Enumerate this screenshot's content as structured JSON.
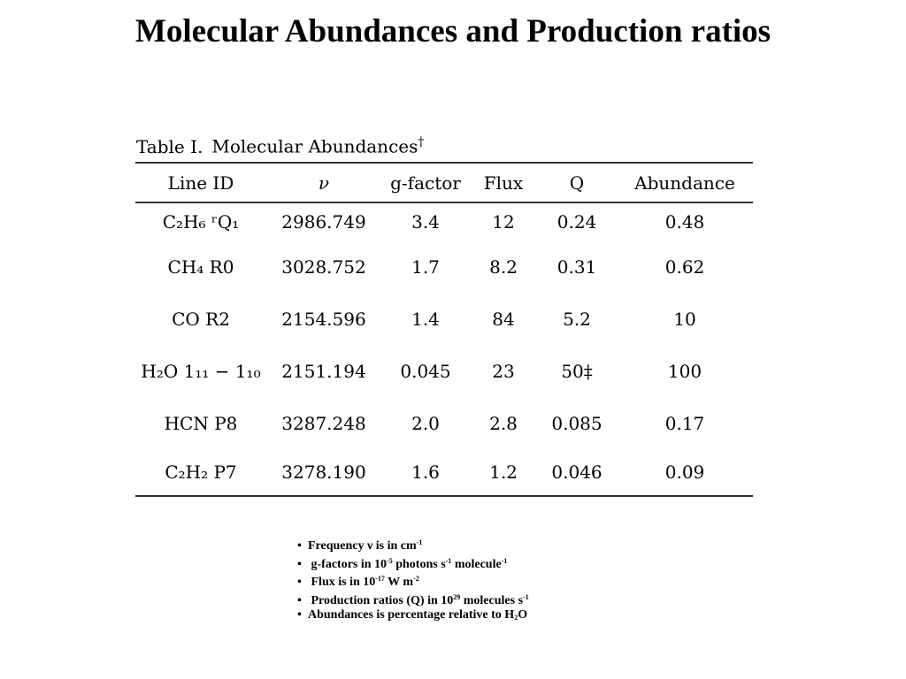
{
  "title": "Molecular Abundances and Production ratios",
  "table": {
    "caption_label": "Table I.",
    "caption_text": "Molecular Abundances",
    "caption_mark": "†",
    "headers": [
      "Line ID",
      "ν",
      "g-factor",
      "Flux",
      "Q",
      "Abundance"
    ],
    "rows": [
      {
        "line_id": "C₂H₆ ʳQ₁",
        "nu": "2986.749",
        "g_factor": "3.4",
        "flux": "12",
        "q": "0.24",
        "abundance": "0.48"
      },
      {
        "line_id": "CH₄ R0",
        "nu": "3028.752",
        "g_factor": "1.7",
        "flux": "8.2",
        "q": "0.31",
        "abundance": "0.62"
      },
      {
        "line_id": "CO R2",
        "nu": "2154.596",
        "g_factor": "1.4",
        "flux": "84",
        "q": "5.2",
        "abundance": "10"
      },
      {
        "line_id": "H₂O 1₁₁ − 1₁₀",
        "nu": "2151.194",
        "g_factor": "0.045",
        "flux": "23",
        "q": "50‡",
        "abundance": "100"
      },
      {
        "line_id": "HCN P8",
        "nu": "3287.248",
        "g_factor": "2.0",
        "flux": "2.8",
        "q": "0.085",
        "abundance": "0.17"
      },
      {
        "line_id": "C₂H₂ P7",
        "nu": "3278.190",
        "g_factor": "1.6",
        "flux": "1.2",
        "q": "0.046",
        "abundance": "0.09"
      }
    ]
  },
  "notes": {
    "bullet": "•",
    "n1": {
      "text": "Frequency ν is in cm",
      "sup": "-1"
    },
    "n2": {
      "t1": "g-factors in 10",
      "s1": "-5",
      "t2": " photons s",
      "s2": "-1",
      "t3": " molecule",
      "s3": "-1"
    },
    "n3": {
      "t1": "Flux is in 10",
      "s1": "-17",
      "t2": " W m",
      "s2": "-2"
    },
    "n4": {
      "t1": "Production ratios (Q) in 10",
      "s1": "29",
      "t2": " molecules s",
      "s2": "-1"
    },
    "n5": {
      "t1": "Abundances is percentage relative to H",
      "sub": "2",
      "t2": "O"
    }
  }
}
